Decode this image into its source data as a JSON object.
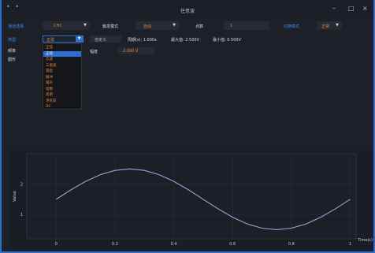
{
  "window": {
    "title": "任意波",
    "dots": "• •",
    "min": "–",
    "max": "□",
    "close": "×"
  },
  "controls": {
    "output_label": "通道选择",
    "output_value": "CH1",
    "output_mode_label": "触发模式",
    "output_mode_value": "自动",
    "points_label": "点数",
    "points_value": "1",
    "switch_mode_label": "切换模式",
    "switch_mode_value": "正常",
    "type_label": "类型",
    "type_value": "正弦",
    "freq_label": "频率",
    "pattern_label": "图形",
    "custom_label": "自定义",
    "period_label": "周期(s): 1.000s",
    "max_label": "最大值: 2.500V",
    "min_label": "最小值: 0.500V",
    "amp_label": "幅度",
    "amp_value": "2.000 V"
  },
  "dropdown": {
    "items": [
      "正弦",
      "正弦",
      "方波",
      "三角波",
      "锯齿",
      "脉冲",
      "噪声",
      "指数",
      "高斯",
      "洛伦兹",
      "DC"
    ],
    "selected_index": 1
  },
  "chart_data": {
    "type": "line",
    "title": "",
    "xlabel": "Time(s)",
    "ylabel": "Value",
    "xlim": [
      -0.1,
      1.02
    ],
    "ylim": [
      0.2,
      3.0
    ],
    "xticks": [
      "0",
      "0.2",
      "0.4",
      "0.6",
      "0.8",
      "1"
    ],
    "yticks": [
      "1",
      "2"
    ],
    "series": [
      {
        "color": "#8fa8d8",
        "x": [
          0,
          0.05,
          0.1,
          0.15,
          0.2,
          0.25,
          0.3,
          0.35,
          0.4,
          0.45,
          0.5,
          0.55,
          0.6,
          0.65,
          0.7,
          0.75,
          0.8,
          0.85,
          0.9,
          0.95,
          1.0
        ],
        "y": [
          1.5,
          1.81,
          2.09,
          2.31,
          2.45,
          2.5,
          2.45,
          2.31,
          2.09,
          1.81,
          1.5,
          1.19,
          0.91,
          0.69,
          0.55,
          0.5,
          0.55,
          0.69,
          0.91,
          1.19,
          1.5
        ]
      }
    ],
    "grid": true
  }
}
